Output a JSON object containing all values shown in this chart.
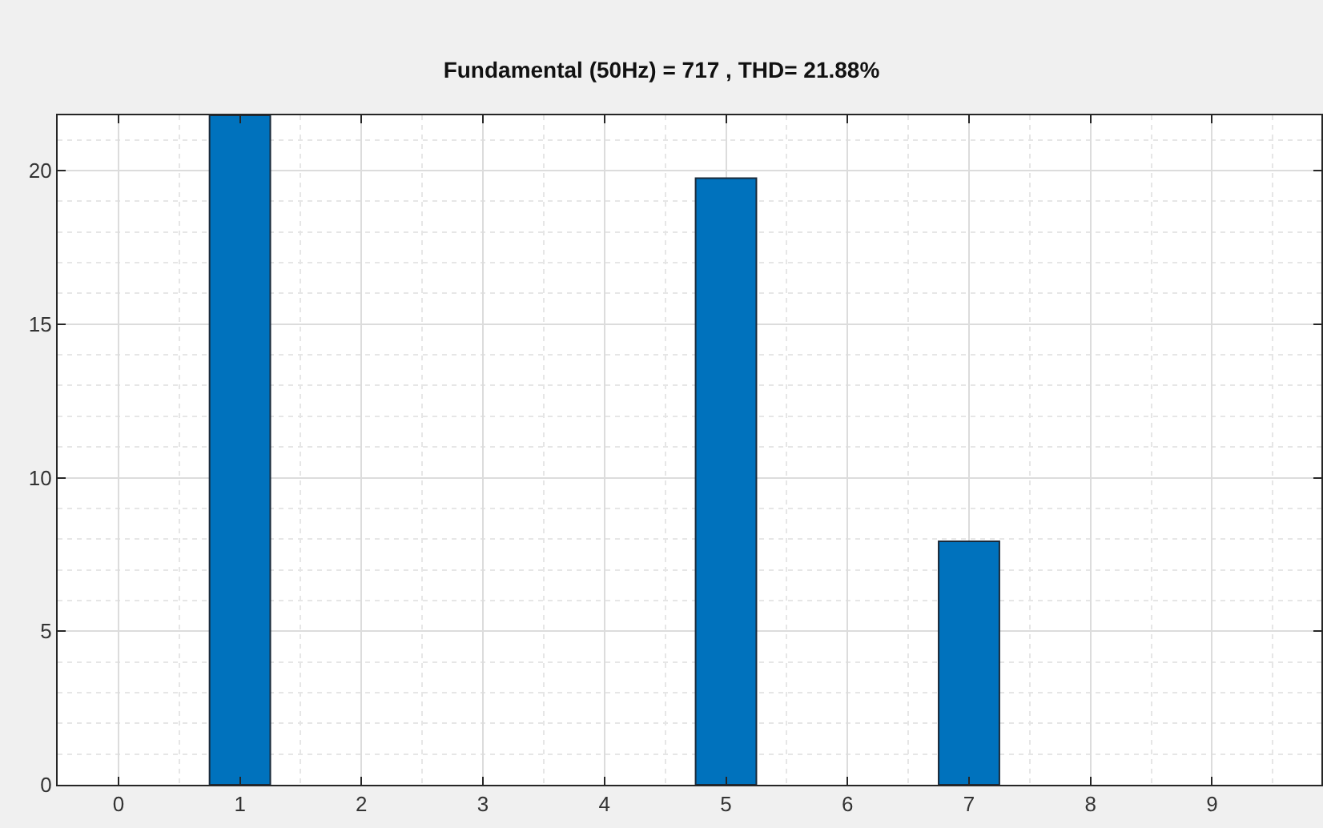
{
  "chart_data": {
    "type": "bar",
    "title": "Fundamental (50Hz) = 717 , THD= 21.88%",
    "x": [
      1,
      5,
      7
    ],
    "values": [
      21.8,
      19.75,
      7.93
    ],
    "color": "#0072bd",
    "xlim": [
      -0.5,
      9.9
    ],
    "xticks": [
      0,
      1,
      2,
      3,
      4,
      5,
      6,
      7,
      8,
      9
    ],
    "ylim": [
      0,
      21.8
    ],
    "yticks": [
      0,
      5,
      10,
      15,
      20
    ],
    "grid": true,
    "legend": false
  }
}
